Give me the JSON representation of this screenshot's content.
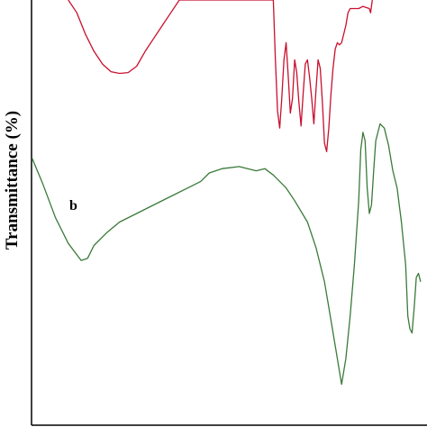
{
  "chart_data": {
    "type": "line",
    "xlabel": "",
    "ylabel": "Transmittance (%)",
    "grid": false,
    "series": [
      {
        "name": "",
        "color": "#c8102e",
        "points": [
          [
            0.16,
            0.0
          ],
          [
            0.18,
            0.03
          ],
          [
            0.2,
            0.08
          ],
          [
            0.22,
            0.12
          ],
          [
            0.24,
            0.15
          ],
          [
            0.26,
            0.168
          ],
          [
            0.28,
            0.172
          ],
          [
            0.3,
            0.17
          ],
          [
            0.32,
            0.155
          ],
          [
            0.34,
            0.12
          ],
          [
            0.36,
            0.09
          ],
          [
            0.38,
            0.06
          ],
          [
            0.4,
            0.03
          ],
          [
            0.42,
            0.0
          ],
          [
            0.64,
            0.0
          ],
          [
            0.645,
            0.14
          ],
          [
            0.65,
            0.26
          ],
          [
            0.655,
            0.3
          ],
          [
            0.66,
            0.23
          ],
          [
            0.665,
            0.14
          ],
          [
            0.67,
            0.1
          ],
          [
            0.675,
            0.18
          ],
          [
            0.68,
            0.265
          ],
          [
            0.685,
            0.23
          ],
          [
            0.69,
            0.14
          ],
          [
            0.695,
            0.17
          ],
          [
            0.7,
            0.24
          ],
          [
            0.705,
            0.295
          ],
          [
            0.71,
            0.22
          ],
          [
            0.715,
            0.15
          ],
          [
            0.72,
            0.14
          ],
          [
            0.725,
            0.18
          ],
          [
            0.73,
            0.23
          ],
          [
            0.735,
            0.29
          ],
          [
            0.74,
            0.21
          ],
          [
            0.745,
            0.14
          ],
          [
            0.75,
            0.16
          ],
          [
            0.755,
            0.24
          ],
          [
            0.76,
            0.335
          ],
          [
            0.765,
            0.355
          ],
          [
            0.77,
            0.3
          ],
          [
            0.775,
            0.22
          ],
          [
            0.78,
            0.16
          ],
          [
            0.785,
            0.115
          ],
          [
            0.79,
            0.1
          ],
          [
            0.795,
            0.105
          ],
          [
            0.8,
            0.1
          ],
          [
            0.81,
            0.06
          ],
          [
            0.815,
            0.03
          ],
          [
            0.82,
            0.02
          ],
          [
            0.84,
            0.02
          ],
          [
            0.85,
            0.015
          ],
          [
            0.865,
            0.02
          ],
          [
            0.868,
            0.03
          ],
          [
            0.872,
            0.0
          ]
        ]
      },
      {
        "name": "b",
        "color": "#3a7a3a",
        "points": [
          [
            0.075,
            0.37
          ],
          [
            0.1,
            0.43
          ],
          [
            0.13,
            0.51
          ],
          [
            0.16,
            0.57
          ],
          [
            0.19,
            0.61
          ],
          [
            0.205,
            0.605
          ],
          [
            0.22,
            0.575
          ],
          [
            0.25,
            0.545
          ],
          [
            0.28,
            0.52
          ],
          [
            0.32,
            0.5
          ],
          [
            0.36,
            0.48
          ],
          [
            0.4,
            0.46
          ],
          [
            0.44,
            0.44
          ],
          [
            0.47,
            0.425
          ],
          [
            0.49,
            0.405
          ],
          [
            0.52,
            0.395
          ],
          [
            0.56,
            0.39
          ],
          [
            0.6,
            0.4
          ],
          [
            0.62,
            0.395
          ],
          [
            0.64,
            0.41
          ],
          [
            0.67,
            0.44
          ],
          [
            0.69,
            0.47
          ],
          [
            0.72,
            0.52
          ],
          [
            0.74,
            0.58
          ],
          [
            0.76,
            0.66
          ],
          [
            0.775,
            0.75
          ],
          [
            0.79,
            0.84
          ],
          [
            0.8,
            0.9
          ],
          [
            0.81,
            0.84
          ],
          [
            0.82,
            0.74
          ],
          [
            0.83,
            0.62
          ],
          [
            0.84,
            0.47
          ],
          [
            0.845,
            0.35
          ],
          [
            0.85,
            0.31
          ],
          [
            0.855,
            0.33
          ],
          [
            0.86,
            0.44
          ],
          [
            0.865,
            0.5
          ],
          [
            0.87,
            0.48
          ],
          [
            0.875,
            0.4
          ],
          [
            0.88,
            0.33
          ],
          [
            0.89,
            0.29
          ],
          [
            0.9,
            0.3
          ],
          [
            0.91,
            0.34
          ],
          [
            0.92,
            0.4
          ],
          [
            0.93,
            0.44
          ],
          [
            0.94,
            0.52
          ],
          [
            0.95,
            0.62
          ],
          [
            0.955,
            0.74
          ],
          [
            0.96,
            0.77
          ],
          [
            0.965,
            0.78
          ],
          [
            0.97,
            0.72
          ],
          [
            0.975,
            0.65
          ],
          [
            0.98,
            0.64
          ],
          [
            0.985,
            0.66
          ]
        ]
      }
    ],
    "annotations": [
      {
        "text": "b",
        "series": 1
      }
    ]
  }
}
